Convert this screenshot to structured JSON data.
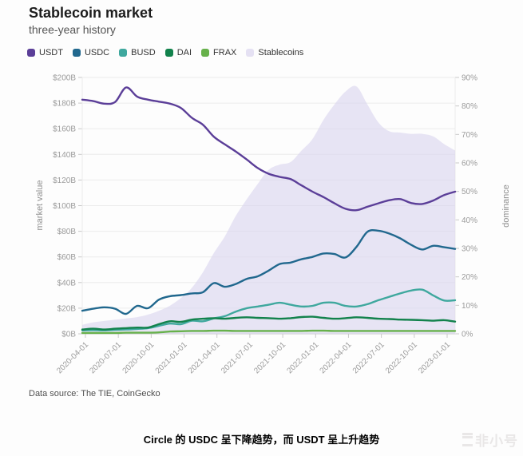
{
  "page": {
    "title": "Stablecoin market",
    "subtitle": "three-year history",
    "data_source": "Data source: The TIE, CoinGecko",
    "caption": "Circle 的 USDC 呈下降趋势，而 USDT 呈上升趋势",
    "watermark": "非小号"
  },
  "colors": {
    "usdt": "#5b3e98",
    "usdc": "#21688e",
    "busd": "#3fa89e",
    "dai": "#12824c",
    "frax": "#67b14b",
    "stablecoins_area": "#d9d4ee",
    "stablecoins_legend": "#e5e1f3",
    "grid": "#ececec",
    "axis": "#c9c9c9"
  },
  "chart_data": {
    "type": "area+line",
    "title": "Stablecoin market",
    "subtitle": "three-year history",
    "legend": [
      "USDT",
      "USDC",
      "BUSD",
      "DAI",
      "FRAX",
      "Stablecoins"
    ],
    "legend_position": "top-left",
    "grid": true,
    "x_ticks": [
      "2020-04-01",
      "2020-07-01",
      "2020-10-01",
      "2021-01-01",
      "2021-04-01",
      "2021-07-01",
      "2021-10-01",
      "2022-01-01",
      "2022-04-01",
      "2022-07-01",
      "2022-10-01",
      "2023-01-01"
    ],
    "x_sample_note": "35 evenly spaced samples spanning ~2020-03 to ~2023-01",
    "left_axis": {
      "label": "market value",
      "unit": "$B",
      "min": 0,
      "max": 200,
      "ticks": [
        "$0B",
        "$20B",
        "$40B",
        "$60B",
        "$80B",
        "$100B",
        "$120B",
        "$140B",
        "$160B",
        "$180B",
        "$200B"
      ]
    },
    "right_axis": {
      "label": "dominance",
      "unit": "%",
      "min": 0,
      "max": 90,
      "ticks": [
        "0%",
        "10%",
        "20%",
        "30%",
        "40%",
        "50%",
        "60%",
        "70%",
        "80%",
        "90%"
      ]
    },
    "area_series": {
      "name": "Stablecoins",
      "axis": "left",
      "unit": "$B",
      "values": [
        7,
        9,
        10,
        11,
        12,
        13,
        15,
        18,
        22,
        28,
        36,
        48,
        63,
        76,
        92,
        105,
        117,
        128,
        132,
        134,
        143,
        152,
        167,
        179,
        189,
        193,
        179,
        165,
        158,
        157,
        156,
        156,
        154,
        148,
        143
      ]
    },
    "series": [
      {
        "name": "USDT",
        "axis": "right",
        "unit": "%",
        "values": [
          82.2,
          81.7,
          80.8,
          81.4,
          86.5,
          83.3,
          82.2,
          81.5,
          80.8,
          79.3,
          75.8,
          73.4,
          69.2,
          66.5,
          64.0,
          61.2,
          58.2,
          56.2,
          55.1,
          54.3,
          52.1,
          49.9,
          48.0,
          45.8,
          43.9,
          43.4,
          44.6,
          45.8,
          46.9,
          47.3,
          45.9,
          45.6,
          46.8,
          48.7,
          49.9
        ]
      },
      {
        "name": "USDC",
        "axis": "right",
        "unit": "%",
        "values": [
          8.1,
          8.8,
          9.3,
          8.8,
          7.0,
          9.8,
          9.0,
          12.0,
          13.2,
          13.6,
          14.2,
          14.6,
          17.8,
          16.5,
          17.5,
          19.3,
          20.2,
          22.2,
          24.5,
          25.0,
          26.2,
          27.0,
          28.2,
          28.0,
          26.8,
          30.5,
          35.8,
          36.2,
          35.2,
          33.5,
          31.2,
          29.6,
          30.9,
          30.4,
          29.8
        ]
      },
      {
        "name": "BUSD",
        "axis": "right",
        "unit": "%",
        "values": [
          1.2,
          1.3,
          1.2,
          1.4,
          1.5,
          1.7,
          2.0,
          2.8,
          3.6,
          3.4,
          4.6,
          4.4,
          5.4,
          6.2,
          7.8,
          9.0,
          9.6,
          10.2,
          10.9,
          10.2,
          9.6,
          9.8,
          10.9,
          10.9,
          9.8,
          9.6,
          10.4,
          11.8,
          13.0,
          14.2,
          15.2,
          15.5,
          13.5,
          11.7,
          11.8
        ]
      },
      {
        "name": "DAI",
        "axis": "right",
        "unit": "%",
        "values": [
          1.5,
          1.8,
          1.5,
          1.8,
          2.0,
          2.2,
          2.2,
          3.4,
          4.4,
          4.2,
          5.0,
          5.3,
          5.5,
          5.3,
          5.6,
          5.8,
          5.6,
          5.5,
          5.3,
          5.5,
          5.9,
          6.0,
          5.6,
          5.3,
          5.5,
          5.8,
          5.6,
          5.3,
          5.2,
          5.0,
          4.9,
          4.8,
          4.6,
          4.8,
          4.3
        ]
      },
      {
        "name": "FRAX",
        "axis": "right",
        "unit": "%",
        "values": [
          0.3,
          0.3,
          0.3,
          0.3,
          0.4,
          0.4,
          0.4,
          0.5,
          0.8,
          0.9,
          1.0,
          1.0,
          1.1,
          1.1,
          1.0,
          1.0,
          1.0,
          1.0,
          1.0,
          1.0,
          1.0,
          1.1,
          1.1,
          1.0,
          1.0,
          1.0,
          1.0,
          1.0,
          1.0,
          1.0,
          1.0,
          1.0,
          1.0,
          1.0,
          1.0
        ]
      }
    ]
  }
}
